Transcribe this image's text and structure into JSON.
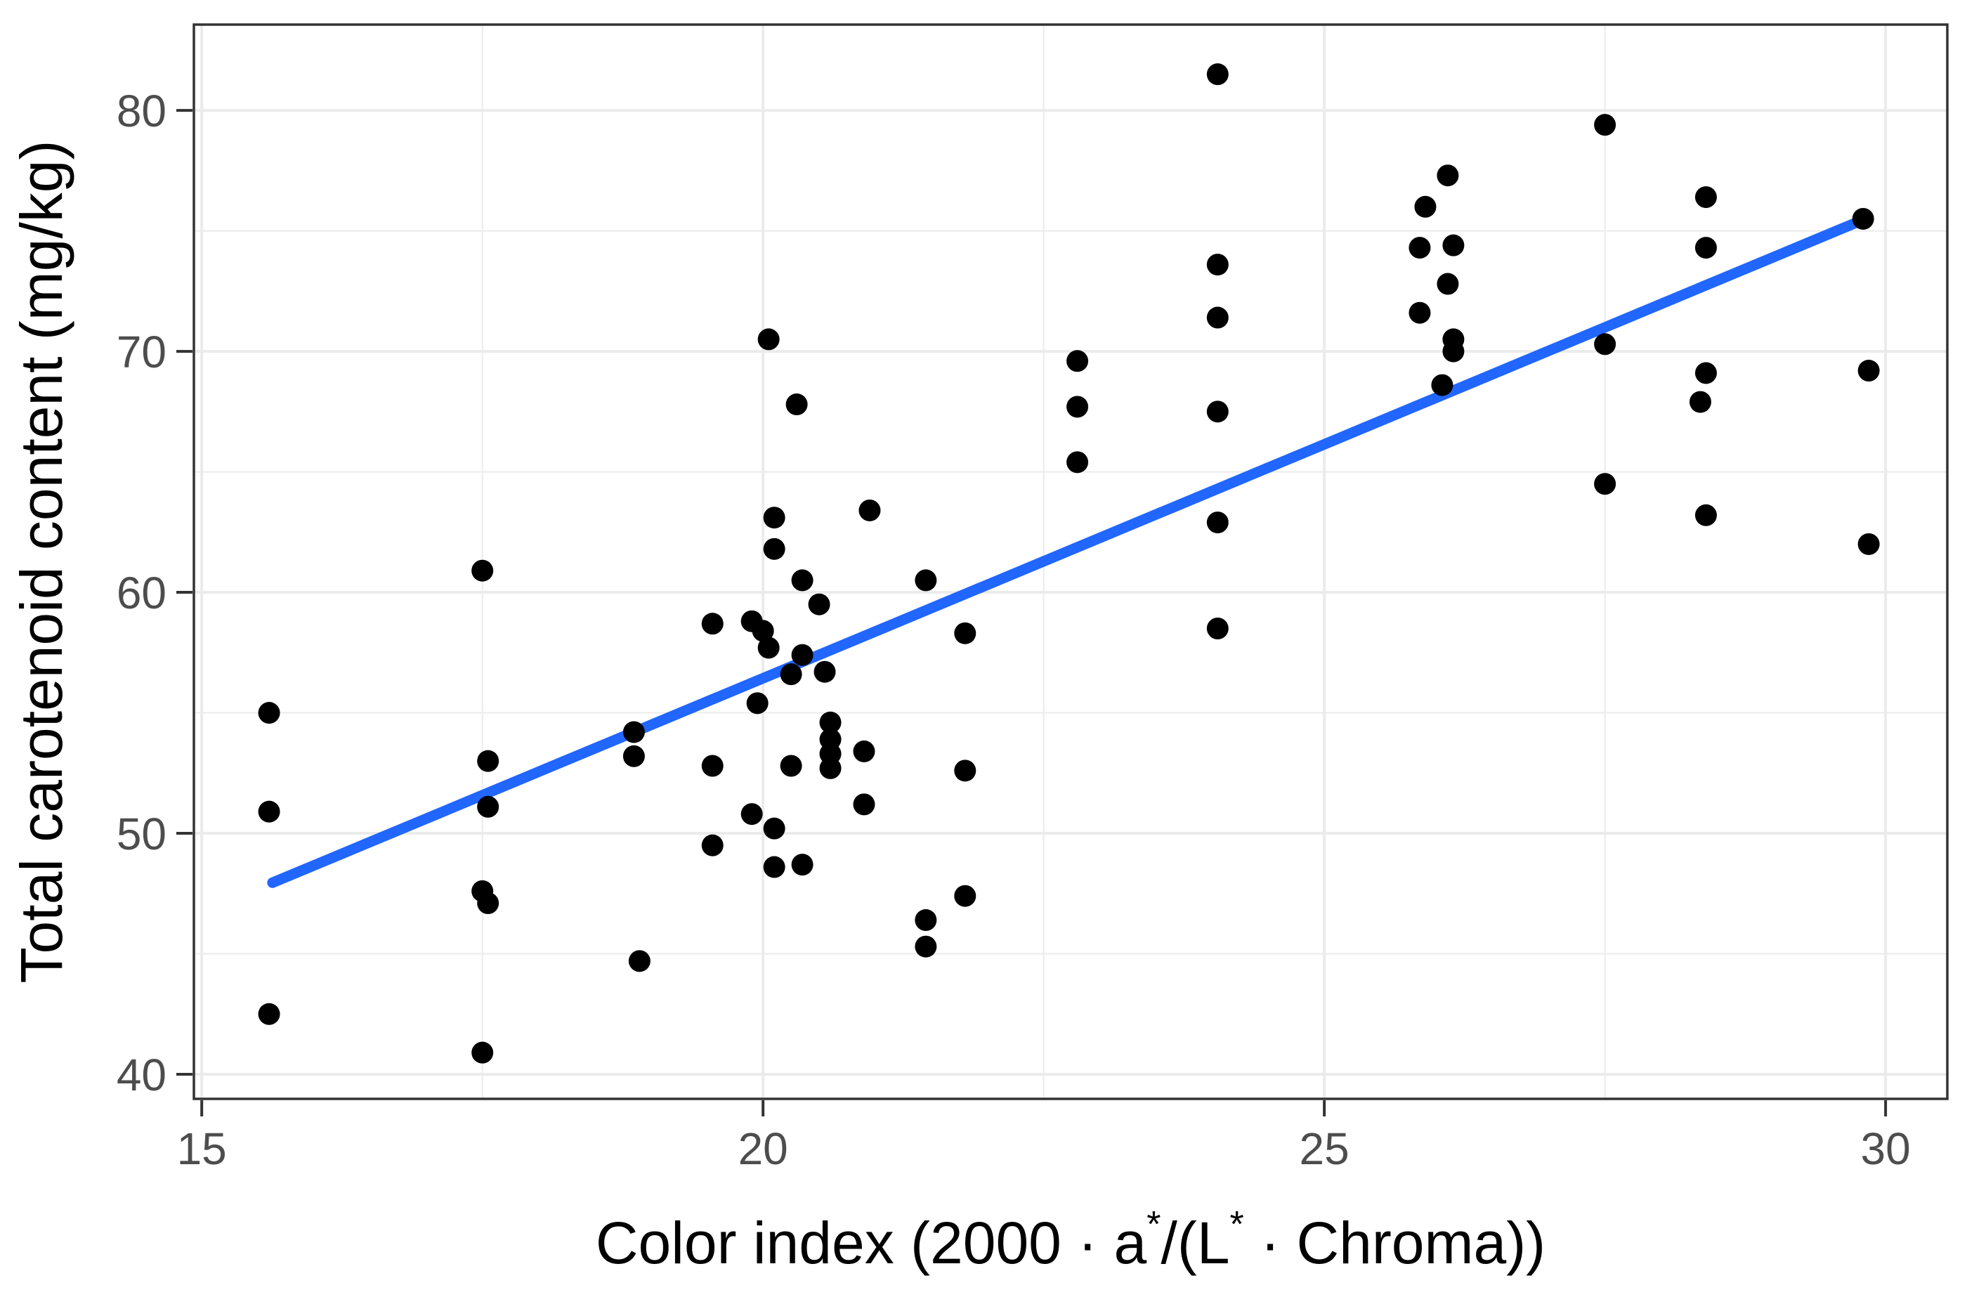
{
  "chart_data": {
    "type": "scatter",
    "title": "",
    "xlabel_plain": "Color index (2000 · a*/(L* · Chroma))",
    "xlabel_segments": [
      {
        "text": "Color index (2000 · a",
        "sup": false
      },
      {
        "text": "*",
        "sup": true
      },
      {
        "text": "/(L",
        "sup": false
      },
      {
        "text": "*",
        "sup": true
      },
      {
        "text": " · Chroma))",
        "sup": false
      }
    ],
    "ylabel": "Total carotenoid content (mg/kg)",
    "axes": {
      "x_ticks": [
        15,
        20,
        25,
        30
      ],
      "x_tick_labels": [
        "15",
        "20",
        "25",
        "30"
      ],
      "y_ticks": [
        40,
        50,
        60,
        70,
        80
      ],
      "y_tick_labels": [
        "40",
        "50",
        "60",
        "70",
        "80"
      ],
      "x_minor": [
        17.5,
        22.5,
        27.5
      ],
      "y_minor": [
        45,
        55,
        65,
        75
      ],
      "xlim": [
        14.93,
        30.55
      ],
      "ylim": [
        38.98,
        83.56
      ],
      "grid": true,
      "legend": "none"
    },
    "points": [
      [
        15.6,
        55.0
      ],
      [
        15.6,
        50.9
      ],
      [
        15.6,
        42.5
      ],
      [
        17.5,
        60.9
      ],
      [
        17.55,
        53.0
      ],
      [
        17.55,
        51.1
      ],
      [
        17.5,
        47.6
      ],
      [
        17.55,
        47.1
      ],
      [
        17.5,
        40.9
      ],
      [
        18.85,
        54.2
      ],
      [
        18.85,
        53.2
      ],
      [
        18.9,
        44.7
      ],
      [
        19.55,
        58.7
      ],
      [
        19.55,
        52.8
      ],
      [
        19.55,
        49.5
      ],
      [
        19.9,
        58.8
      ],
      [
        20.0,
        58.4
      ],
      [
        19.95,
        55.4
      ],
      [
        19.9,
        50.8
      ],
      [
        20.05,
        70.5
      ],
      [
        20.3,
        67.8
      ],
      [
        20.1,
        63.1
      ],
      [
        20.1,
        61.8
      ],
      [
        20.35,
        60.5
      ],
      [
        20.5,
        59.5
      ],
      [
        20.05,
        57.7
      ],
      [
        20.35,
        57.4
      ],
      [
        20.25,
        56.6
      ],
      [
        20.55,
        56.7
      ],
      [
        20.6,
        54.6
      ],
      [
        20.6,
        53.9
      ],
      [
        20.6,
        53.3
      ],
      [
        20.6,
        52.7
      ],
      [
        20.25,
        52.8
      ],
      [
        20.1,
        50.2
      ],
      [
        20.1,
        48.6
      ],
      [
        20.35,
        48.7
      ],
      [
        20.95,
        63.4
      ],
      [
        20.9,
        53.4
      ],
      [
        20.9,
        51.2
      ],
      [
        21.45,
        60.5
      ],
      [
        21.45,
        46.4
      ],
      [
        21.45,
        45.3
      ],
      [
        21.8,
        58.3
      ],
      [
        21.8,
        52.6
      ],
      [
        21.8,
        47.4
      ],
      [
        22.8,
        69.6
      ],
      [
        22.8,
        67.7
      ],
      [
        22.8,
        65.4
      ],
      [
        24.05,
        81.5
      ],
      [
        24.05,
        73.6
      ],
      [
        24.05,
        71.4
      ],
      [
        24.05,
        67.5
      ],
      [
        24.05,
        62.9
      ],
      [
        24.05,
        58.5
      ],
      [
        26.1,
        77.3
      ],
      [
        25.9,
        76.0
      ],
      [
        25.85,
        74.3
      ],
      [
        26.15,
        74.4
      ],
      [
        26.1,
        72.8
      ],
      [
        25.85,
        71.6
      ],
      [
        26.15,
        70.5
      ],
      [
        26.15,
        70.0
      ],
      [
        26.05,
        68.6
      ],
      [
        27.5,
        79.4
      ],
      [
        27.5,
        70.3
      ],
      [
        27.5,
        64.5
      ],
      [
        28.4,
        76.4
      ],
      [
        28.4,
        74.3
      ],
      [
        28.4,
        69.1
      ],
      [
        28.35,
        67.9
      ],
      [
        28.4,
        63.2
      ],
      [
        29.8,
        75.5
      ],
      [
        29.85,
        69.2
      ],
      [
        29.85,
        62.0
      ]
    ],
    "trend_line": {
      "x1": 15.63,
      "y1": 47.95,
      "x2": 29.82,
      "y2": 75.5
    },
    "colors": {
      "point": "#000000",
      "trend": "#2166FF",
      "grid": "#EBEBEB",
      "panel_border": "#333333",
      "tick_mark": "#333333",
      "tick_label": "#4D4D4D",
      "axis_title": "#000000",
      "background": "#FFFFFF"
    },
    "style": {
      "point_radius": 15.5,
      "trend_width": 15,
      "grid_major_width": 4,
      "grid_minor_width": 2,
      "border_width": 3.5,
      "tick_len": 23,
      "tick_width": 4,
      "tick_font_size": 64,
      "title_font_size": 84,
      "sup_font_size": 52
    }
  }
}
